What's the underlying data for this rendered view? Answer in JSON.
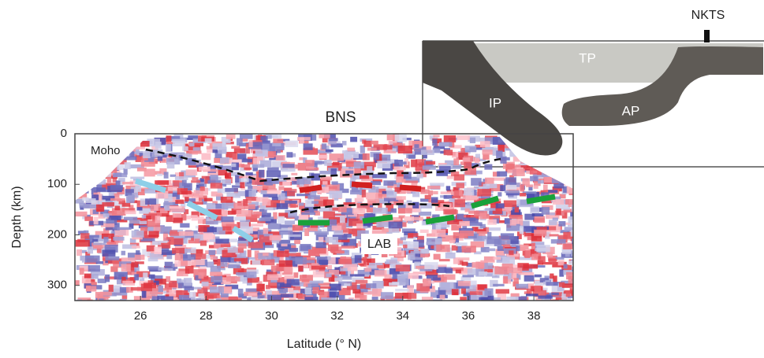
{
  "figure": {
    "plot": {
      "title": "BNS",
      "annotations": {
        "moho": "Moho",
        "lab": "LAB"
      },
      "xaxis": {
        "label": "Latitude (° N)",
        "lim": [
          24,
          39.2
        ],
        "ticks": [
          26,
          28,
          30,
          32,
          34,
          36,
          38
        ]
      },
      "yaxis": {
        "label": "Depth (km)",
        "lim": [
          0,
          330
        ],
        "ticks": [
          0,
          100,
          200,
          300
        ]
      }
    },
    "schematic": {
      "station": "NKTS",
      "labels": {
        "tp": "TP",
        "ip": "IP",
        "ap": "AP"
      }
    }
  }
}
